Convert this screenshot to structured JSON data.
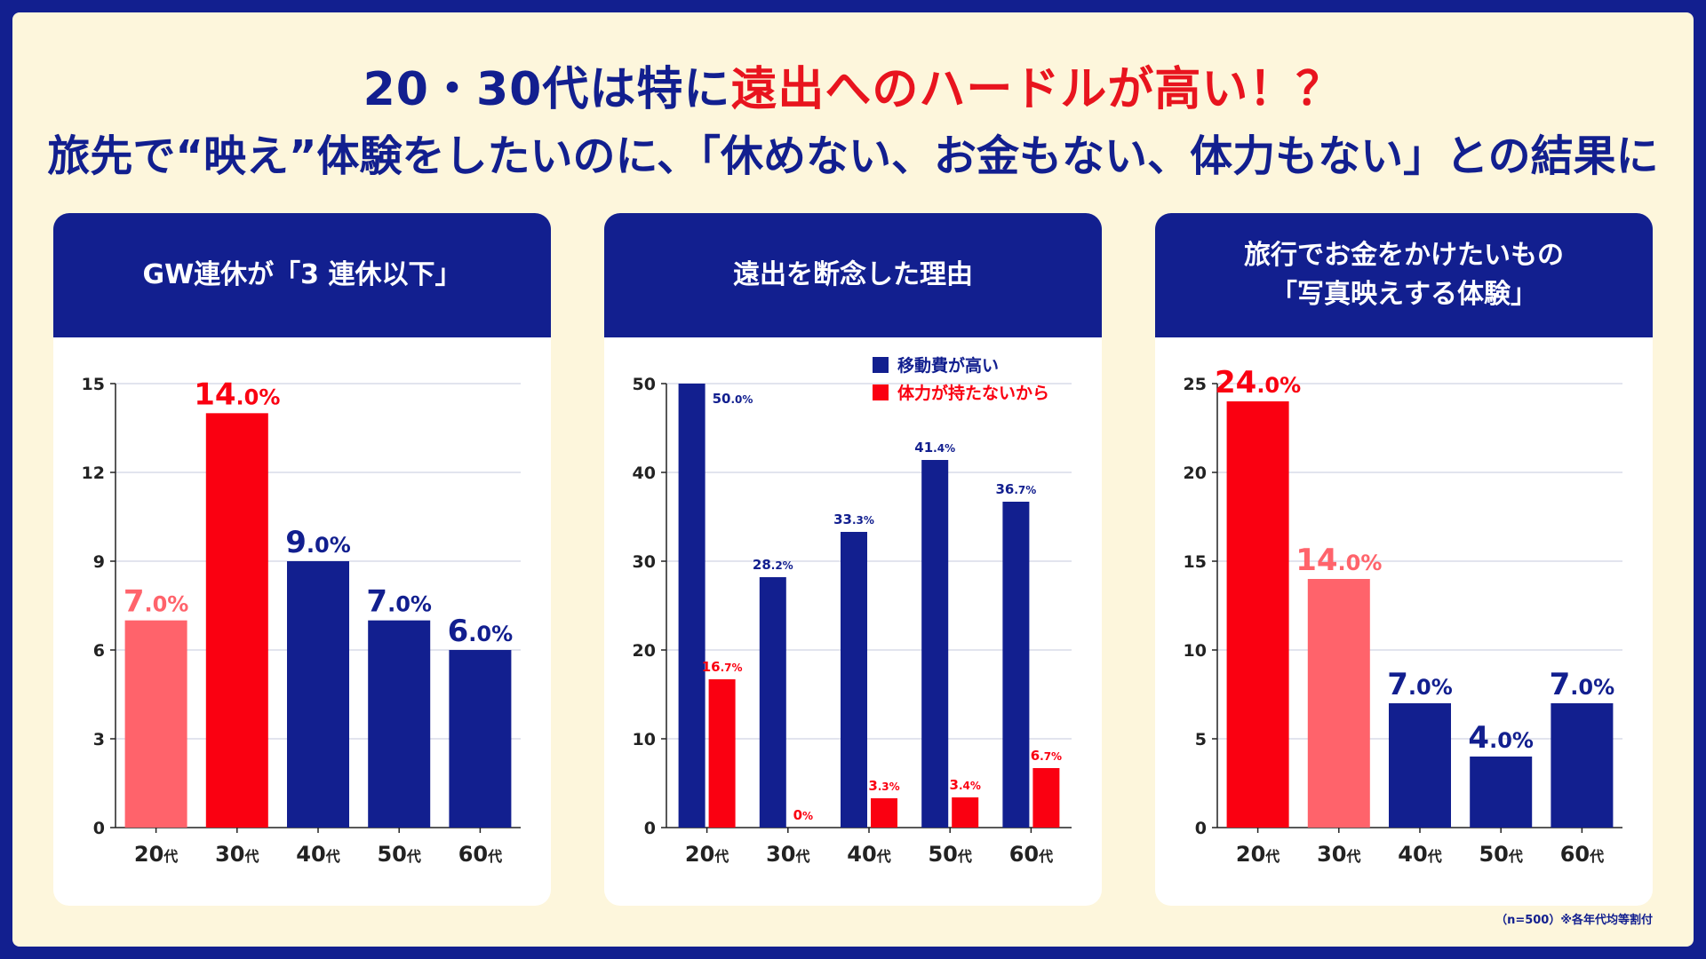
{
  "headline": {
    "line1_part1": "20・30代は特に",
    "line1_accent": "遠出へのハードルが高い！？",
    "line2": "旅先で“映え”体験をしたいのに、「休めない、お金もない、体力もない」との結果に"
  },
  "footnote": "（n=500）※各年代均等割付",
  "colors": {
    "navy": "#121f8f",
    "red": "#fa0011",
    "pink": "#ff636b",
    "white": "#ffffff"
  },
  "chart_data": [
    {
      "type": "bar",
      "title": "GW連休が「3 連休以下」",
      "categories": [
        "20代",
        "30代",
        "40代",
        "50代",
        "60代"
      ],
      "values": [
        7.0,
        14.0,
        9.0,
        7.0,
        6.0
      ],
      "value_labels": [
        "7.0%",
        "14.0%",
        "9.0%",
        "7.0%",
        "6.0%"
      ],
      "bar_colors": [
        "pink",
        "red",
        "navy",
        "navy",
        "navy"
      ],
      "ylim": [
        0,
        15
      ],
      "yticks": [
        0,
        3,
        6,
        9,
        12,
        15
      ],
      "xlabel": "",
      "ylabel": ""
    },
    {
      "type": "bar",
      "title": "遠出を断念した理由",
      "categories": [
        "20代",
        "30代",
        "40代",
        "50代",
        "60代"
      ],
      "series": [
        {
          "name": "移動費が高い",
          "color": "navy",
          "values": [
            50.0,
            28.2,
            33.3,
            41.4,
            36.7
          ],
          "labels": [
            "50.0%",
            "28.2%",
            "33.3%",
            "41.4%",
            "36.7%"
          ]
        },
        {
          "name": "体力が持たないから",
          "color": "red",
          "values": [
            16.7,
            0,
            3.3,
            3.4,
            6.7
          ],
          "labels": [
            "16.7%",
            "0%",
            "3.3%",
            "3.4%",
            "6.7%"
          ]
        }
      ],
      "ylim": [
        0,
        50
      ],
      "yticks": [
        0,
        10,
        20,
        30,
        40,
        50
      ],
      "legend": "top-right",
      "xlabel": "",
      "ylabel": ""
    },
    {
      "type": "bar",
      "title_lines": [
        "旅行でお金をかけたいもの",
        "「写真映えする体験」"
      ],
      "categories": [
        "20代",
        "30代",
        "40代",
        "50代",
        "60代"
      ],
      "values": [
        24.0,
        14.0,
        7.0,
        4.0,
        7.0
      ],
      "value_labels": [
        "24.0%",
        "14.0%",
        "7.0%",
        "4.0%",
        "7.0%"
      ],
      "bar_colors": [
        "red",
        "pink",
        "navy",
        "navy",
        "navy"
      ],
      "ylim": [
        0,
        25
      ],
      "yticks": [
        0,
        5,
        10,
        15,
        20,
        25
      ],
      "xlabel": "",
      "ylabel": ""
    }
  ]
}
